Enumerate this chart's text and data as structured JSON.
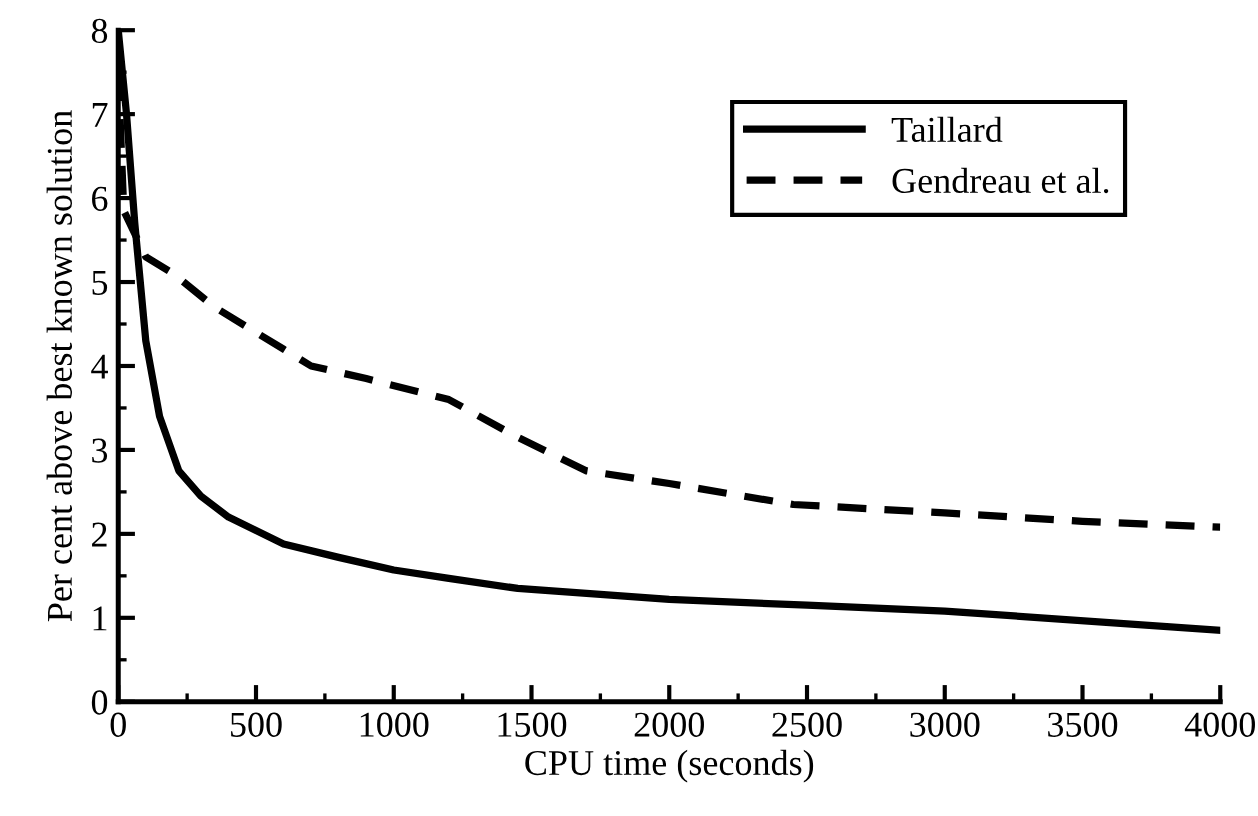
{
  "chart_data": {
    "type": "line",
    "xlabel": "CPU time (seconds)",
    "ylabel": "Per cent above best known solution",
    "xlim": [
      0,
      4000
    ],
    "xticks": [
      0,
      500,
      1000,
      1500,
      2000,
      2500,
      3000,
      3500,
      4000
    ],
    "ylim": [
      0,
      8
    ],
    "yticks": [
      0,
      1,
      2,
      3,
      4,
      5,
      6,
      7,
      8
    ],
    "grid": false,
    "legend": "top right",
    "marker": "none",
    "series": [
      {
        "name": "Taillard",
        "color": "#000000",
        "line_style": "solid",
        "x": [
          0,
          30,
          60,
          100,
          150,
          220,
          300,
          400,
          600,
          800,
          1000,
          1200,
          1450,
          2000,
          2500,
          3000,
          4000
        ],
        "values": [
          8,
          7,
          5.7,
          4.3,
          3.4,
          2.75,
          2.45,
          2.2,
          1.88,
          1.72,
          1.57,
          1.47,
          1.35,
          1.22,
          1.15,
          1.08,
          0.85
        ]
      },
      {
        "name": "Gendreau et al.",
        "color": "#000000",
        "line_style": "dashed",
        "x": [
          0,
          20,
          100,
          200,
          350,
          600,
          700,
          900,
          1200,
          1450,
          1700,
          2000,
          2450,
          3000,
          3500,
          4000
        ],
        "values": [
          7.5,
          5.85,
          5.3,
          5.1,
          4.7,
          4.2,
          4.0,
          3.85,
          3.6,
          3.15,
          2.75,
          2.6,
          2.35,
          2.25,
          2.15,
          2.08
        ]
      }
    ]
  }
}
